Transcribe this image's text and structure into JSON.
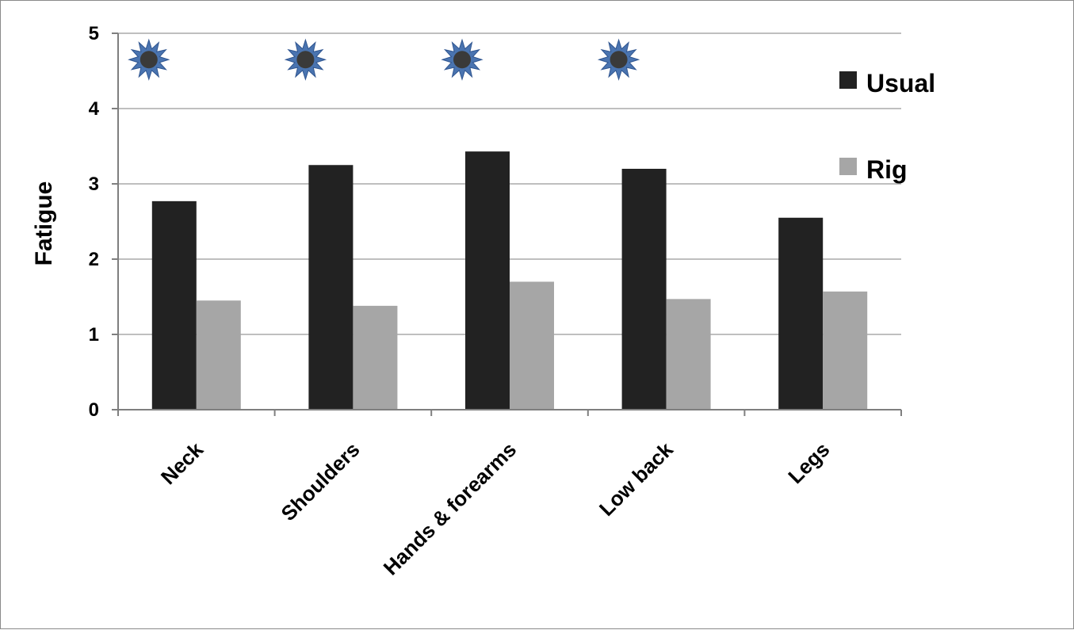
{
  "chart_data": {
    "type": "bar",
    "ylabel": "Fatigue",
    "xlabel": "",
    "ylim": [
      0,
      5
    ],
    "yticks": [
      0,
      1,
      2,
      3,
      4,
      5
    ],
    "grid": true,
    "legend_position": "right",
    "categories": [
      "Neck",
      "Shoulders",
      "Hands & forearms",
      "Low back",
      "Legs"
    ],
    "series": [
      {
        "name": "Usual",
        "color": "#222222",
        "values": [
          2.77,
          3.25,
          3.43,
          3.2,
          2.55
        ]
      },
      {
        "name": "Rig",
        "color": "#a6a6a6",
        "values": [
          1.45,
          1.38,
          1.7,
          1.47,
          1.57
        ]
      }
    ],
    "significance_markers": {
      "icon": "star-burst-icon",
      "color": "#4a74b0",
      "categories": [
        "Neck",
        "Shoulders",
        "Hands & forearms",
        "Low back"
      ],
      "y": 4.65
    },
    "gridline_color": "#bfbfbf"
  }
}
